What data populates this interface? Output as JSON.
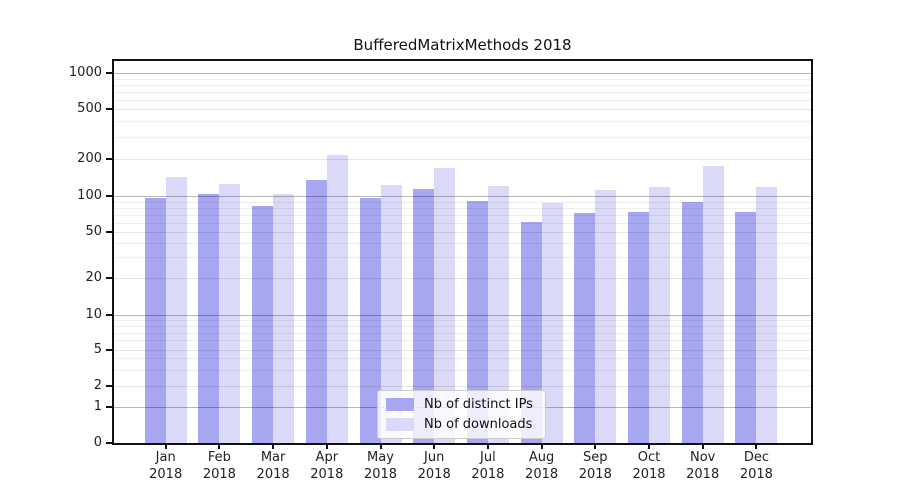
{
  "chart_data": {
    "type": "bar",
    "title": "BufferedMatrixMethods 2018",
    "categories": [
      "Jan",
      "Feb",
      "Mar",
      "Apr",
      "May",
      "Jun",
      "Jul",
      "Aug",
      "Sep",
      "Oct",
      "Nov",
      "Dec"
    ],
    "year_label": "2018",
    "series": [
      {
        "name": "Nb of distinct IPs",
        "color": "#a7a7f1",
        "values": [
          97,
          103,
          83,
          136,
          96,
          114,
          91,
          61,
          72,
          73,
          90,
          73
        ]
      },
      {
        "name": "Nb of downloads",
        "color": "#dadaf8",
        "values": [
          142,
          125,
          103,
          215,
          122,
          168,
          120,
          87,
          111,
          118,
          176,
          118
        ]
      }
    ],
    "yscale": "symlog",
    "yticks": [
      0,
      1,
      2,
      5,
      10,
      20,
      50,
      100,
      200,
      500,
      1000
    ],
    "ylim": [
      0,
      1000
    ],
    "grid": true,
    "legend_position": "inside-bottom-center",
    "colors": {
      "axis": "#111111",
      "grid_major": "#ababab",
      "grid_minor": "#ececec",
      "title": "#111111"
    }
  }
}
